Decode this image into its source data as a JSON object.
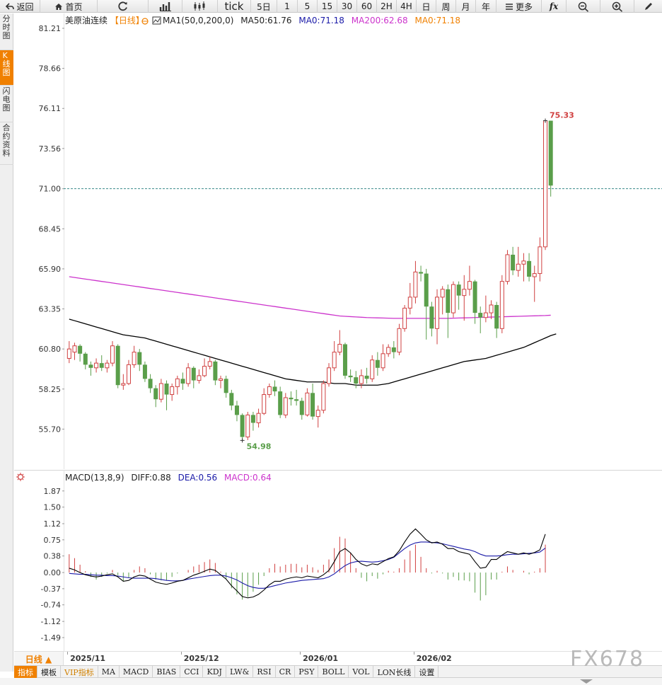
{
  "toolbar": {
    "back_label": "返回",
    "home_label": "首页",
    "tick_label": "tick",
    "five_day_label": "5日",
    "intervals": [
      "1",
      "5",
      "15",
      "30",
      "60",
      "2H",
      "4H",
      "日",
      "周",
      "月",
      "年"
    ],
    "more_label": "更多",
    "fx_label": "fx"
  },
  "sidebar": {
    "tabs": [
      {
        "label": "分时图",
        "active": false
      },
      {
        "label": "K线图",
        "active": true
      },
      {
        "label": "闪电图",
        "active": false
      },
      {
        "label": "合约资料",
        "active": false
      }
    ]
  },
  "legend": {
    "instrument": "美原油连续",
    "period": "【日线】",
    "ma1": "MA1(50,0,200,0)",
    "ma50": "MA50:61.76",
    "ma0_blue": "MA0:71.18",
    "ma200": "MA200:62.68",
    "ma0_orange": "MA0:71.18"
  },
  "macd_legend": {
    "name": "MACD(13,8,9)",
    "diff": "DIFF:0.88",
    "dea": "DEA:0.56",
    "macd": "MACD:0.64"
  },
  "colors": {
    "up": "#d04040",
    "down": "#5a9e4a",
    "ma50": "#000000",
    "ma200": "#cc33cc",
    "dea": "#1a1aa8",
    "macd_label": "#cc33cc",
    "price_line": "#3a8a8a",
    "accent": "#f08000"
  },
  "chart_data": [
    {
      "type": "candlestick",
      "title": "美原油连续【日线】",
      "y_ticks": [
        "81.21",
        "78.66",
        "76.11",
        "73.56",
        "71.00",
        "68.45",
        "65.90",
        "63.35",
        "60.80",
        "58.25",
        "55.70"
      ],
      "ylim": [
        53.15,
        81.21
      ],
      "current_price": 71.0,
      "annotations": [
        {
          "label": "75.33",
          "value": 75.33,
          "type": "high"
        },
        {
          "label": "54.98",
          "value": 54.98,
          "type": "low"
        }
      ],
      "candles": [
        [
          60.2,
          60.8,
          61.3,
          59.9
        ],
        [
          60.6,
          61.0,
          61.2,
          60.1
        ],
        [
          61.0,
          60.5,
          61.1,
          60.0
        ],
        [
          60.5,
          59.8,
          60.6,
          59.5
        ],
        [
          59.8,
          59.6,
          60.0,
          59.1
        ],
        [
          59.6,
          59.9,
          60.2,
          59.3
        ],
        [
          59.9,
          59.6,
          60.4,
          59.4
        ],
        [
          59.6,
          59.9,
          60.1,
          59.3
        ],
        [
          59.9,
          61.0,
          61.3,
          59.7
        ],
        [
          61.0,
          58.5,
          61.1,
          58.3
        ],
        [
          58.5,
          58.6,
          59.2,
          58.2
        ],
        [
          58.6,
          59.8,
          60.1,
          58.5
        ],
        [
          59.8,
          60.6,
          61.0,
          59.6
        ],
        [
          60.6,
          59.8,
          60.8,
          59.4
        ],
        [
          59.8,
          58.9,
          60.0,
          58.7
        ],
        [
          58.9,
          58.3,
          59.2,
          58.0
        ],
        [
          58.3,
          57.6,
          58.5,
          57.1
        ],
        [
          57.6,
          58.6,
          58.9,
          57.4
        ],
        [
          58.6,
          57.9,
          58.8,
          56.9
        ],
        [
          57.9,
          58.4,
          58.6,
          57.5
        ],
        [
          58.4,
          58.9,
          59.1,
          57.9
        ],
        [
          58.9,
          58.6,
          59.3,
          58.2
        ],
        [
          58.6,
          59.6,
          59.9,
          58.4
        ],
        [
          59.6,
          58.8,
          59.7,
          58.3
        ],
        [
          58.8,
          59.1,
          59.5,
          58.6
        ],
        [
          59.1,
          59.7,
          60.2,
          59.0
        ],
        [
          59.7,
          60.0,
          60.3,
          59.5
        ],
        [
          60.0,
          58.8,
          60.1,
          58.5
        ],
        [
          58.8,
          58.9,
          59.1,
          58.3
        ],
        [
          58.9,
          58.0,
          59.1,
          57.7
        ],
        [
          58.0,
          57.2,
          58.2,
          56.9
        ],
        [
          57.2,
          56.6,
          57.5,
          56.2
        ],
        [
          56.6,
          55.2,
          56.7,
          54.98
        ],
        [
          55.2,
          56.6,
          56.8,
          55.0
        ],
        [
          56.6,
          56.1,
          56.8,
          55.6
        ],
        [
          56.1,
          56.7,
          57.0,
          55.8
        ],
        [
          56.7,
          57.9,
          58.3,
          56.6
        ],
        [
          57.9,
          58.4,
          58.6,
          57.7
        ],
        [
          58.4,
          58.1,
          58.8,
          57.8
        ],
        [
          58.1,
          56.6,
          58.4,
          56.4
        ],
        [
          56.6,
          57.7,
          58.0,
          56.4
        ],
        [
          57.7,
          57.6,
          58.1,
          57.2
        ],
        [
          57.6,
          57.5,
          58.2,
          57.2
        ],
        [
          57.5,
          56.6,
          57.7,
          56.3
        ],
        [
          56.6,
          58.0,
          58.3,
          56.5
        ],
        [
          58.0,
          56.5,
          58.6,
          56.3
        ],
        [
          56.5,
          56.9,
          57.2,
          55.8
        ],
        [
          56.9,
          58.6,
          58.8,
          56.7
        ],
        [
          58.6,
          59.6,
          59.9,
          58.4
        ],
        [
          59.6,
          60.6,
          61.3,
          59.4
        ],
        [
          60.6,
          61.1,
          62.0,
          60.4
        ],
        [
          61.1,
          59.1,
          61.2,
          58.9
        ],
        [
          59.1,
          59.0,
          59.5,
          58.7
        ],
        [
          59.0,
          58.6,
          59.4,
          58.3
        ],
        [
          58.6,
          59.1,
          59.5,
          58.3
        ],
        [
          59.1,
          58.9,
          59.6,
          58.6
        ],
        [
          58.9,
          60.1,
          60.4,
          58.7
        ],
        [
          60.1,
          59.6,
          60.6,
          59.1
        ],
        [
          59.6,
          60.5,
          61.1,
          59.4
        ],
        [
          60.5,
          60.9,
          61.1,
          60.3
        ],
        [
          60.9,
          60.6,
          61.3,
          60.2
        ],
        [
          60.6,
          62.1,
          62.4,
          60.4
        ],
        [
          62.1,
          63.4,
          63.6,
          61.9
        ],
        [
          63.4,
          64.1,
          65.0,
          63.0
        ],
        [
          64.1,
          65.7,
          66.4,
          63.7
        ],
        [
          65.7,
          65.6,
          66.1,
          65.1
        ],
        [
          65.6,
          63.5,
          65.9,
          61.4
        ],
        [
          63.5,
          62.1,
          63.8,
          61.6
        ],
        [
          62.1,
          64.1,
          64.6,
          61.1
        ],
        [
          64.1,
          64.6,
          64.8,
          63.0
        ],
        [
          64.6,
          63.1,
          64.9,
          61.5
        ],
        [
          63.1,
          64.9,
          65.1,
          62.8
        ],
        [
          64.9,
          64.2,
          65.1,
          63.3
        ],
        [
          64.2,
          64.6,
          65.5,
          62.6
        ],
        [
          64.6,
          65.1,
          66.1,
          64.2
        ],
        [
          65.1,
          63.1,
          65.2,
          62.4
        ],
        [
          63.1,
          62.8,
          63.5,
          61.8
        ],
        [
          62.8,
          63.1,
          64.2,
          62.5
        ],
        [
          63.1,
          63.6,
          63.9,
          62.7
        ],
        [
          63.6,
          62.1,
          63.8,
          61.5
        ],
        [
          62.1,
          65.1,
          65.5,
          61.8
        ],
        [
          65.1,
          66.8,
          67.1,
          64.9
        ],
        [
          66.8,
          65.8,
          67.3,
          65.5
        ],
        [
          65.8,
          66.2,
          67.3,
          65.4
        ],
        [
          66.2,
          66.4,
          66.9,
          65.1
        ],
        [
          66.4,
          65.4,
          66.9,
          65.1
        ],
        [
          65.4,
          65.6,
          66.1,
          63.8
        ],
        [
          65.6,
          67.3,
          67.9,
          65.1
        ],
        [
          67.3,
          75.33,
          75.33,
          67.1
        ],
        [
          75.33,
          71.2,
          75.33,
          70.5
        ]
      ],
      "series": [
        {
          "name": "MA50",
          "values": [
            62.7,
            62.6,
            62.5,
            62.4,
            62.3,
            62.2,
            62.1,
            62.0,
            61.9,
            61.8,
            61.7,
            61.65,
            61.6,
            61.55,
            61.5,
            61.4,
            61.3,
            61.2,
            61.1,
            61.0,
            60.9,
            60.8,
            60.7,
            60.6,
            60.5,
            60.4,
            60.3,
            60.2,
            60.1,
            60.0,
            59.9,
            59.8,
            59.7,
            59.6,
            59.5,
            59.4,
            59.3,
            59.2,
            59.1,
            59.0,
            58.9,
            58.85,
            58.8,
            58.75,
            58.7,
            58.7,
            58.7,
            58.7,
            58.65,
            58.6,
            58.6,
            58.6,
            58.55,
            58.5,
            58.5,
            58.5,
            58.5,
            58.5,
            58.55,
            58.6,
            58.7,
            58.8,
            58.9,
            59.0,
            59.1,
            59.2,
            59.3,
            59.4,
            59.5,
            59.6,
            59.7,
            59.8,
            59.9,
            60.0,
            60.05,
            60.1,
            60.15,
            60.2,
            60.3,
            60.4,
            60.5,
            60.6,
            60.7,
            60.8,
            60.9,
            61.05,
            61.2,
            61.35,
            61.5,
            61.65,
            61.76
          ]
        },
        {
          "name": "MA200",
          "values": [
            65.4,
            65.35,
            65.3,
            65.25,
            65.2,
            65.15,
            65.1,
            65.05,
            65.0,
            64.95,
            64.9,
            64.85,
            64.8,
            64.75,
            64.7,
            64.65,
            64.6,
            64.55,
            64.5,
            64.45,
            64.4,
            64.35,
            64.3,
            64.25,
            64.2,
            64.15,
            64.1,
            64.05,
            64.0,
            63.95,
            63.9,
            63.85,
            63.8,
            63.75,
            63.7,
            63.65,
            63.6,
            63.55,
            63.5,
            63.45,
            63.4,
            63.35,
            63.3,
            63.25,
            63.2,
            63.15,
            63.1,
            63.05,
            63.0,
            62.95,
            62.9,
            62.88,
            62.86,
            62.84,
            62.82,
            62.8,
            62.79,
            62.78,
            62.77,
            62.76,
            62.75,
            62.75,
            62.75,
            62.75,
            62.75,
            62.75,
            62.75,
            62.75,
            62.75,
            62.75,
            62.75,
            62.76,
            62.77,
            62.78,
            62.79,
            62.8,
            62.81,
            62.82,
            62.83,
            62.84,
            62.85,
            62.86,
            62.87,
            62.88,
            62.89,
            62.9,
            62.91,
            62.92,
            62.93,
            62.95,
            62.68
          ]
        }
      ]
    },
    {
      "type": "macd",
      "title": "MACD(13,8,9)",
      "y_ticks": [
        "1.87",
        "1.50",
        "1.12",
        "0.75",
        "0.38",
        "0.00",
        "-0.37",
        "-0.74",
        "-1.12",
        "-1.49"
      ],
      "ylim": [
        -1.75,
        1.98
      ],
      "x_labels": [
        {
          "label": "2025/11",
          "index": 2
        },
        {
          "label": "2025/12",
          "index": 23
        },
        {
          "label": "2026/01",
          "index": 45
        },
        {
          "label": "2026/02",
          "index": 66
        }
      ],
      "series": [
        {
          "name": "DIFF",
          "values": [
            0.1,
            0.06,
            0.0,
            -0.05,
            -0.08,
            -0.1,
            -0.08,
            -0.05,
            -0.03,
            -0.1,
            -0.2,
            -0.18,
            -0.1,
            -0.06,
            -0.08,
            -0.15,
            -0.22,
            -0.25,
            -0.27,
            -0.24,
            -0.2,
            -0.18,
            -0.12,
            -0.06,
            -0.02,
            0.03,
            0.08,
            0.05,
            -0.05,
            -0.15,
            -0.3,
            -0.42,
            -0.55,
            -0.58,
            -0.56,
            -0.5,
            -0.4,
            -0.28,
            -0.2,
            -0.2,
            -0.15,
            -0.12,
            -0.1,
            -0.12,
            -0.08,
            -0.1,
            -0.12,
            -0.05,
            0.05,
            0.25,
            0.48,
            0.55,
            0.45,
            0.3,
            0.2,
            0.15,
            0.2,
            0.18,
            0.25,
            0.32,
            0.36,
            0.5,
            0.7,
            0.88,
            1.0,
            0.88,
            0.75,
            0.68,
            0.7,
            0.65,
            0.55,
            0.55,
            0.48,
            0.45,
            0.42,
            0.25,
            0.1,
            0.12,
            0.3,
            0.3,
            0.4,
            0.48,
            0.45,
            0.42,
            0.45,
            0.42,
            0.46,
            0.52,
            0.88
          ]
        },
        {
          "name": "DEA",
          "values": [
            -0.02,
            -0.03,
            -0.04,
            -0.04,
            -0.05,
            -0.06,
            -0.06,
            -0.07,
            -0.07,
            -0.08,
            -0.1,
            -0.12,
            -0.13,
            -0.13,
            -0.13,
            -0.13,
            -0.14,
            -0.16,
            -0.18,
            -0.19,
            -0.19,
            -0.18,
            -0.15,
            -0.13,
            -0.11,
            -0.09,
            -0.07,
            -0.06,
            -0.06,
            -0.08,
            -0.12,
            -0.17,
            -0.24,
            -0.3,
            -0.34,
            -0.36,
            -0.36,
            -0.33,
            -0.3,
            -0.27,
            -0.24,
            -0.22,
            -0.2,
            -0.18,
            -0.17,
            -0.16,
            -0.15,
            -0.14,
            -0.1,
            -0.03,
            0.07,
            0.16,
            0.22,
            0.25,
            0.26,
            0.25,
            0.24,
            0.25,
            0.27,
            0.3,
            0.35,
            0.45,
            0.55,
            0.63,
            0.68,
            0.7,
            0.7,
            0.69,
            0.68,
            0.66,
            0.63,
            0.6,
            0.57,
            0.54,
            0.52,
            0.48,
            0.42,
            0.38,
            0.38,
            0.38,
            0.39,
            0.41,
            0.42,
            0.42,
            0.43,
            0.44,
            0.45,
            0.47,
            0.56
          ]
        }
      ],
      "histogram": [
        0.42,
        0.33,
        0.18,
        0.03,
        -0.1,
        -0.16,
        -0.1,
        -0.02,
        0.06,
        -0.06,
        -0.2,
        -0.12,
        0.06,
        0.14,
        0.1,
        -0.04,
        -0.16,
        -0.18,
        -0.18,
        -0.1,
        -0.02,
        0.0,
        0.06,
        0.14,
        0.18,
        0.24,
        0.3,
        0.22,
        0.02,
        -0.14,
        -0.36,
        -0.5,
        -0.62,
        -0.56,
        -0.44,
        -0.28,
        -0.08,
        0.1,
        0.2,
        0.14,
        0.18,
        0.2,
        0.2,
        0.12,
        0.18,
        0.12,
        0.06,
        0.18,
        0.3,
        0.56,
        0.82,
        0.78,
        0.46,
        0.1,
        -0.12,
        -0.2,
        -0.08,
        -0.14,
        -0.04,
        0.04,
        0.02,
        0.1,
        0.3,
        0.5,
        0.64,
        0.36,
        0.1,
        -0.02,
        0.04,
        -0.02,
        -0.16,
        -0.1,
        -0.18,
        -0.18,
        -0.2,
        -0.46,
        -0.64,
        -0.52,
        -0.16,
        -0.16,
        0.02,
        0.14,
        0.06,
        0.0,
        0.04,
        -0.04,
        0.02,
        0.1,
        0.64
      ]
    }
  ],
  "indicator_tabs": [
    "指标",
    "模板",
    "VIP指标",
    "MA",
    "MACD",
    "BIAS",
    "CCI",
    "KDJ",
    "LW&",
    "RSI",
    "CR",
    "PSY",
    "BOLL",
    "VOL",
    "LON长线",
    "设置"
  ],
  "period_button": "日线 ▲",
  "watermark": "FX678"
}
